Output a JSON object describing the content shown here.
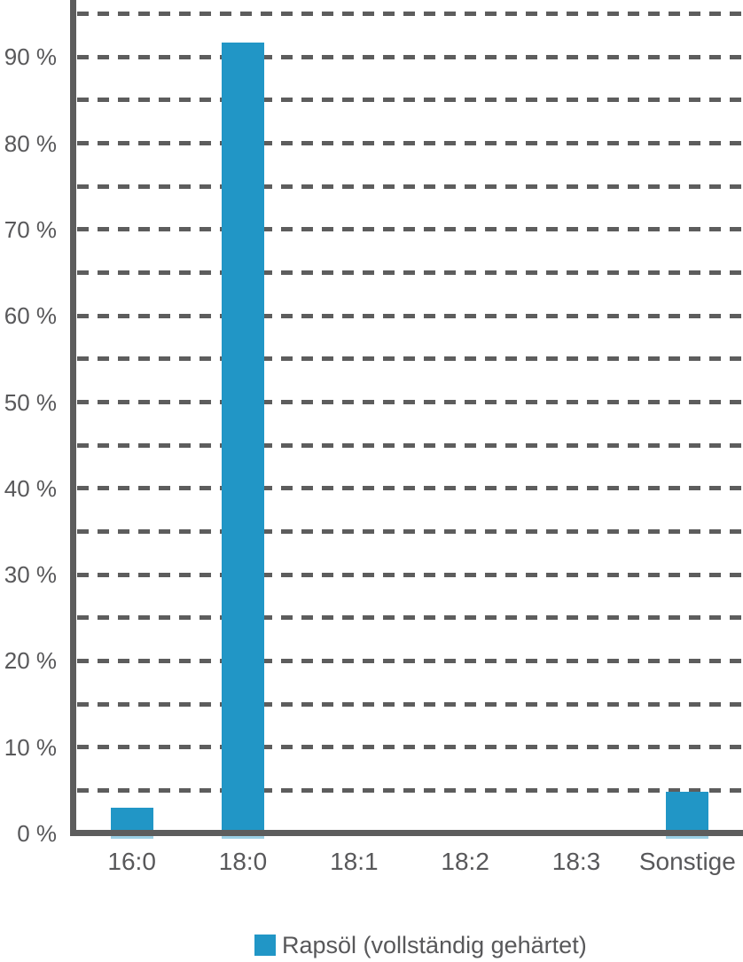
{
  "chart_data": {
    "type": "bar",
    "categories": [
      "16:0",
      "18:0",
      "18:1",
      "18:2",
      "18:3",
      "Sonstige"
    ],
    "series": [
      {
        "name": "Rapsöl (vollständig gehärtet)",
        "values": [
          3,
          91.7,
          0,
          0,
          0,
          4.8
        ],
        "color": "#2196c6"
      }
    ],
    "title": "",
    "xlabel": "",
    "ylabel": "",
    "ylim": [
      0,
      96.5
    ],
    "y_labeled_tick_step": 10,
    "y_gridline_step": 5,
    "y_tick_labels": [
      "0 %",
      "10 %",
      "20 %",
      "30 %",
      "40 %",
      "50 %",
      "60 %",
      "70 %",
      "80 %",
      "90 %"
    ],
    "grid": "horizontal-dashed",
    "legend_position": "bottom",
    "colors": {
      "bar": "#2196c6",
      "gridline": "#5d5d5d",
      "axis": "#5d5d5d",
      "text": "#58585a"
    }
  },
  "legend": {
    "items": [
      {
        "label": "Rapsöl (vollständig gehärtet)",
        "color": "#2196c6"
      }
    ]
  }
}
